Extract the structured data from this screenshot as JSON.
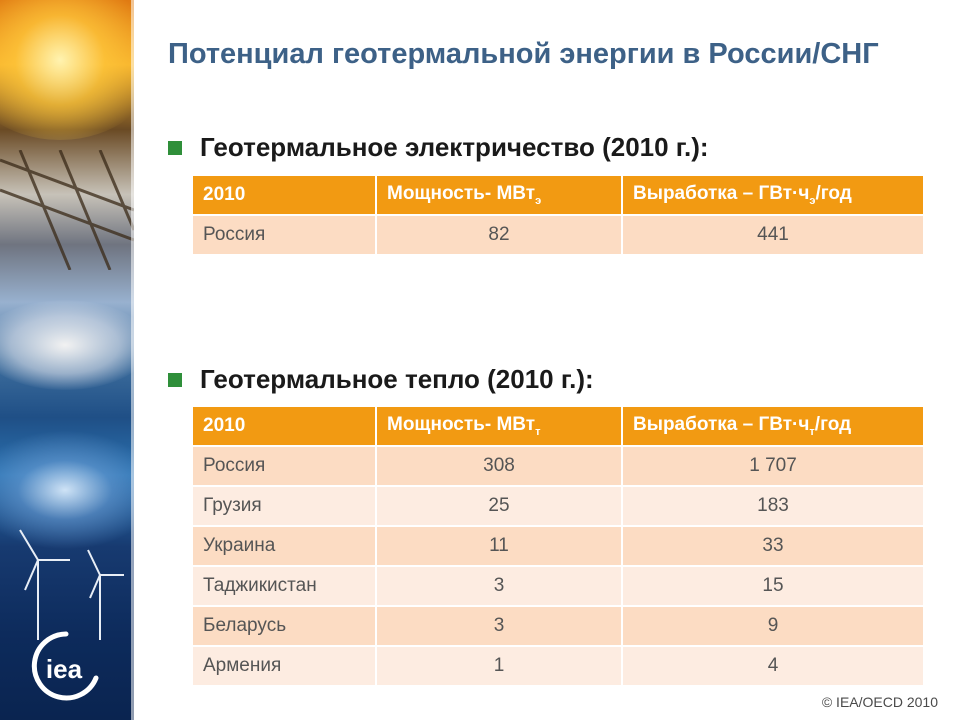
{
  "slide": {
    "title": "Потенциал геотермальной энергии в России/СНГ",
    "copyright": "© IEA/OECD 2010",
    "logo_text": "iea",
    "colors": {
      "title": "#3d6187",
      "header": "#f29a12",
      "row": "#fcdcc3",
      "row_alt": "#fdece1",
      "bullet": "#2f8f3a"
    }
  },
  "section_electricity": {
    "heading": "Геотермальное электричество (2010 г.):",
    "table": {
      "headers": {
        "col1": "2010",
        "col2_main": "Мощность- МВт",
        "col2_sub": "э",
        "col3_pre": "Выработка – ГВт·ч",
        "col3_sub": "э",
        "col3_post": "/год"
      },
      "rows": [
        {
          "country": "Россия",
          "capacity": "82",
          "output": "441"
        }
      ]
    }
  },
  "section_heat": {
    "heading": "Геотермальное тепло (2010 г.):",
    "table": {
      "headers": {
        "col1": "2010",
        "col2_main": "Мощность- МВт",
        "col2_sub": "т",
        "col3_pre": "Выработка – ГВт·ч",
        "col3_sub": "т",
        "col3_post": "/год"
      },
      "rows": [
        {
          "country": "Россия",
          "capacity": "308",
          "output": "1 707"
        },
        {
          "country": "Грузия",
          "capacity": "25",
          "output": "183"
        },
        {
          "country": "Украина",
          "capacity": "11",
          "output": "33"
        },
        {
          "country": "Таджикистан",
          "capacity": "3",
          "output": "15"
        },
        {
          "country": "Беларусь",
          "capacity": "3",
          "output": "9"
        },
        {
          "country": "Армения",
          "capacity": "1",
          "output": "4"
        }
      ]
    }
  }
}
